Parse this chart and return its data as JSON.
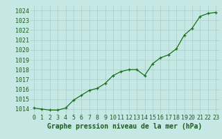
{
  "x": [
    0,
    1,
    2,
    3,
    4,
    5,
    6,
    7,
    8,
    9,
    10,
    11,
    12,
    13,
    14,
    15,
    16,
    17,
    18,
    19,
    20,
    21,
    22,
    23
  ],
  "y": [
    1014.1,
    1014.0,
    1013.9,
    1013.9,
    1014.1,
    1014.9,
    1015.4,
    1015.9,
    1016.1,
    1016.6,
    1017.4,
    1017.8,
    1018.0,
    1018.0,
    1017.4,
    1018.6,
    1019.2,
    1019.5,
    1020.1,
    1021.5,
    1022.2,
    1023.4,
    1023.7,
    1023.8
  ],
  "title": "Graphe pression niveau de la mer (hPa)",
  "ylim_min": 1013.5,
  "ylim_max": 1024.5,
  "yticks": [
    1014,
    1015,
    1016,
    1017,
    1018,
    1019,
    1020,
    1021,
    1022,
    1023,
    1024
  ],
  "xticks": [
    0,
    1,
    2,
    3,
    4,
    5,
    6,
    7,
    8,
    9,
    10,
    11,
    12,
    13,
    14,
    15,
    16,
    17,
    18,
    19,
    20,
    21,
    22,
    23
  ],
  "line_color": "#1a6e1a",
  "marker_color": "#1a6e1a",
  "bg_color": "#c5e8e5",
  "grid_color": "#a8ccca",
  "title_color": "#1a5c1a",
  "tick_color": "#1a5c1a",
  "title_fontsize": 7.0,
  "tick_fontsize": 6.0
}
